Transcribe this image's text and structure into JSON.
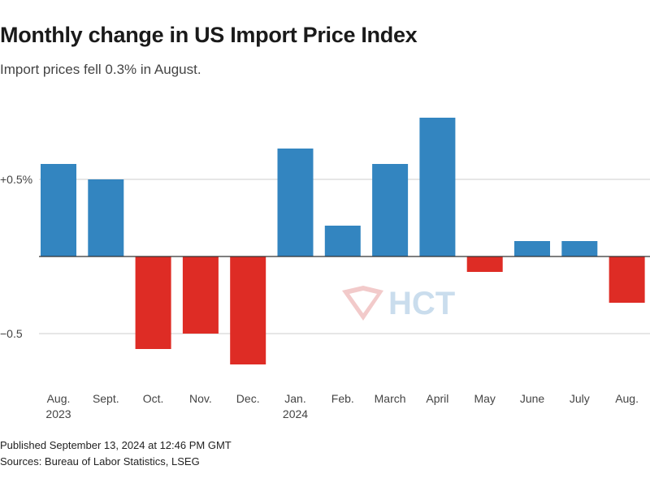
{
  "chart_data": {
    "type": "bar",
    "title": "Monthly change in US Import Price Index",
    "subtitle": "Import prices fell 0.3% in August.",
    "categories": [
      "Aug.",
      "Sept.",
      "Oct.",
      "Nov.",
      "Dec.",
      "Jan.",
      "Feb.",
      "March",
      "April",
      "May",
      "June",
      "July",
      "Aug."
    ],
    "category_sublabels": [
      "2023",
      "",
      "",
      "",
      "",
      "2024",
      "",
      "",
      "",
      "",
      "",
      "",
      ""
    ],
    "values": [
      0.6,
      0.5,
      -0.6,
      -0.5,
      -0.7,
      0.7,
      0.2,
      0.6,
      0.9,
      -0.1,
      0.1,
      0.1,
      -0.3
    ],
    "ylim": [
      -0.85,
      1.0
    ],
    "yticks": [
      {
        "value": 0.5,
        "label": "+0.5%"
      },
      {
        "value": -0.5,
        "label": "−0.5"
      }
    ],
    "colors": {
      "positive": "#3385c0",
      "negative": "#de2c25",
      "grid": "#cccccc",
      "zero": "#333333"
    },
    "xlabel": "",
    "ylabel": ""
  },
  "watermark": {
    "text": "HCT",
    "colors": {
      "red": "#e8a0a0",
      "blue": "#9fc3e0"
    }
  },
  "footer": {
    "published": "Published September 13, 2024 at 12:46 PM GMT",
    "sources": "Sources: Bureau of Labor Statistics, LSEG"
  }
}
